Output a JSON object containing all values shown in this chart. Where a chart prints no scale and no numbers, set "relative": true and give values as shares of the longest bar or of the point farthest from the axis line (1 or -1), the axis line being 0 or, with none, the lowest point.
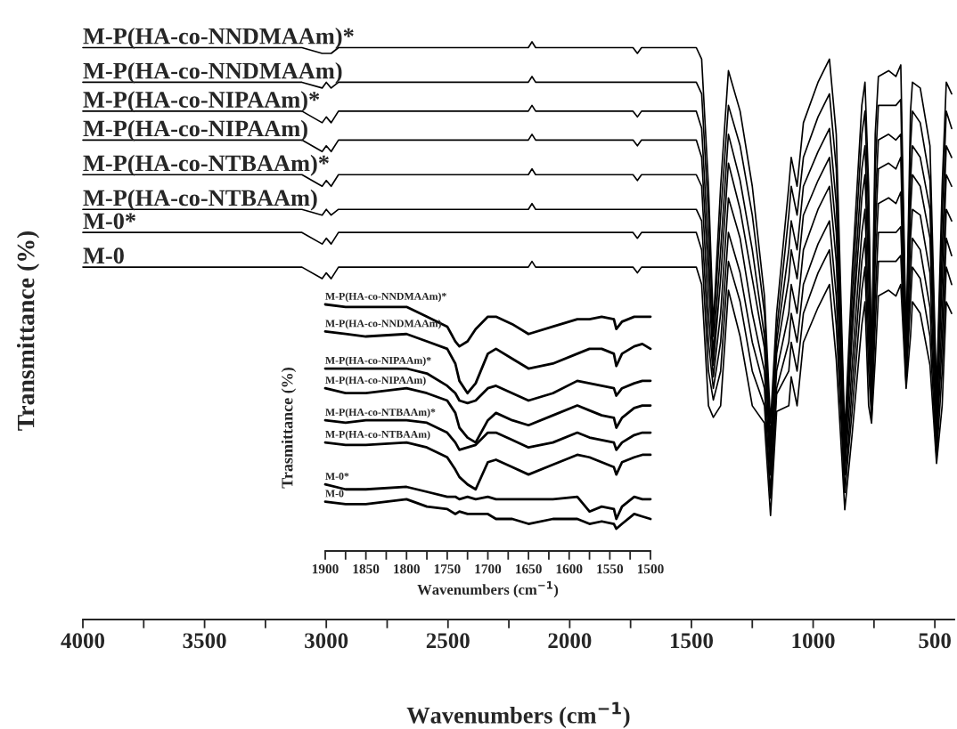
{
  "chart_data": [
    {
      "type": "line",
      "xlabel": "Wavenumbers (cm$^{−1}$)",
      "ylabel": "Transmittance (%)",
      "relative": true,
      "tick_labels": "x",
      "xlim": [
        4000,
        420
      ],
      "xticks": [
        4000,
        {
          "value": 3750,
          "label": null
        },
        3500,
        {
          "value": 3250,
          "label": null
        },
        3000,
        {
          "value": 2750,
          "label": null
        },
        2500,
        {
          "value": 2250,
          "label": null
        },
        2000,
        {
          "value": 1750,
          "label": null
        },
        1500,
        {
          "value": 1250,
          "label": null
        },
        1000,
        {
          "value": 750,
          "label": null
        },
        500
      ],
      "x": [
        4000,
        3100,
        3017,
        3000,
        2980,
        2950,
        2170,
        2155,
        2140,
        1740,
        1722,
        1705,
        1480,
        1458,
        1430,
        1410,
        1380,
        1348,
        1300,
        1250,
        1200,
        1175,
        1150,
        1100,
        1090,
        1066,
        1040,
        980,
        933,
        905,
        870,
        840,
        800,
        787,
        772,
        760,
        745,
        732,
        690,
        660,
        640,
        618,
        600,
        592,
        560,
        520,
        493,
        470,
        453,
        431
      ],
      "series": [
        {
          "name": "M-P(HA-co-NNDMAAm)*",
          "color": "#000000",
          "values": [
            0.99,
            0.99,
            0.98,
            0.98,
            0.98,
            0.99,
            0.99,
            1.0,
            0.99,
            0.99,
            0.98,
            0.99,
            0.99,
            0.97,
            0.75,
            0.51,
            0.75,
            0.95,
            0.88,
            0.75,
            0.56,
            0.34,
            0.53,
            0.75,
            0.8,
            0.75,
            0.86,
            0.93,
            0.97,
            0.84,
            0.32,
            0.6,
            0.89,
            0.93,
            0.75,
            0.44,
            0.84,
            0.94,
            0.95,
            0.94,
            0.96,
            0.48,
            0.88,
            0.93,
            0.92,
            0.82,
            0.39,
            0.75,
            0.93,
            0.91
          ]
        },
        {
          "name": "M-P(HA-co-NNDMAAm)",
          "color": "#000000",
          "values": [
            0.93,
            0.93,
            0.92,
            0.93,
            0.92,
            0.93,
            0.93,
            0.94,
            0.93,
            0.93,
            0.93,
            0.93,
            0.93,
            0.91,
            0.7,
            0.49,
            0.7,
            0.89,
            0.82,
            0.7,
            0.53,
            0.31,
            0.5,
            0.7,
            0.75,
            0.7,
            0.8,
            0.87,
            0.91,
            0.78,
            0.3,
            0.56,
            0.84,
            0.88,
            0.7,
            0.43,
            0.78,
            0.89,
            0.89,
            0.89,
            0.9,
            0.46,
            0.82,
            0.88,
            0.86,
            0.76,
            0.37,
            0.7,
            0.88,
            0.85
          ]
        },
        {
          "name": "M-P(HA-co-NIPAAm)*",
          "color": "#000000",
          "values": [
            0.88,
            0.88,
            0.86,
            0.87,
            0.86,
            0.88,
            0.88,
            0.89,
            0.88,
            0.88,
            0.87,
            0.88,
            0.88,
            0.85,
            0.64,
            0.46,
            0.64,
            0.84,
            0.76,
            0.64,
            0.49,
            0.29,
            0.48,
            0.64,
            0.69,
            0.64,
            0.75,
            0.81,
            0.85,
            0.72,
            0.28,
            0.52,
            0.78,
            0.82,
            0.64,
            0.41,
            0.72,
            0.83,
            0.84,
            0.83,
            0.84,
            0.45,
            0.76,
            0.82,
            0.8,
            0.71,
            0.35,
            0.64,
            0.82,
            0.8
          ]
        },
        {
          "name": "M-P(HA-co-NIPAAm)",
          "color": "#000000",
          "values": [
            0.83,
            0.83,
            0.81,
            0.82,
            0.81,
            0.83,
            0.83,
            0.84,
            0.83,
            0.83,
            0.82,
            0.83,
            0.83,
            0.8,
            0.59,
            0.44,
            0.59,
            0.79,
            0.71,
            0.59,
            0.47,
            0.27,
            0.46,
            0.59,
            0.64,
            0.59,
            0.7,
            0.76,
            0.8,
            0.67,
            0.27,
            0.49,
            0.73,
            0.77,
            0.59,
            0.4,
            0.67,
            0.78,
            0.79,
            0.78,
            0.8,
            0.44,
            0.71,
            0.77,
            0.75,
            0.66,
            0.34,
            0.59,
            0.77,
            0.75
          ]
        },
        {
          "name": "M-P(HA-co-NTBAAm)*",
          "color": "#000000",
          "values": [
            0.77,
            0.77,
            0.75,
            0.76,
            0.75,
            0.77,
            0.77,
            0.78,
            0.77,
            0.77,
            0.76,
            0.77,
            0.77,
            0.75,
            0.53,
            0.42,
            0.53,
            0.73,
            0.66,
            0.53,
            0.43,
            0.25,
            0.43,
            0.53,
            0.58,
            0.53,
            0.64,
            0.71,
            0.75,
            0.62,
            0.25,
            0.44,
            0.67,
            0.71,
            0.53,
            0.38,
            0.62,
            0.72,
            0.73,
            0.72,
            0.74,
            0.43,
            0.66,
            0.71,
            0.7,
            0.6,
            0.31,
            0.53,
            0.71,
            0.69
          ]
        },
        {
          "name": "M-P(HA-co-NTBAAm)",
          "color": "#000000",
          "values": [
            0.71,
            0.71,
            0.7,
            0.71,
            0.7,
            0.71,
            0.71,
            0.72,
            0.71,
            0.71,
            0.71,
            0.71,
            0.71,
            0.69,
            0.48,
            0.4,
            0.48,
            0.67,
            0.6,
            0.48,
            0.4,
            0.22,
            0.4,
            0.48,
            0.53,
            0.48,
            0.58,
            0.65,
            0.69,
            0.56,
            0.22,
            0.4,
            0.62,
            0.66,
            0.48,
            0.36,
            0.56,
            0.67,
            0.67,
            0.67,
            0.68,
            0.41,
            0.6,
            0.66,
            0.64,
            0.54,
            0.3,
            0.48,
            0.66,
            0.63
          ]
        },
        {
          "name": "M-0*",
          "color": "#000000",
          "values": [
            0.67,
            0.67,
            0.65,
            0.66,
            0.65,
            0.67,
            0.67,
            0.67,
            0.67,
            0.67,
            0.66,
            0.67,
            0.67,
            0.64,
            0.43,
            0.38,
            0.43,
            0.62,
            0.55,
            0.43,
            0.37,
            0.21,
            0.39,
            0.43,
            0.48,
            0.43,
            0.53,
            0.6,
            0.64,
            0.51,
            0.22,
            0.36,
            0.57,
            0.61,
            0.43,
            0.35,
            0.51,
            0.62,
            0.62,
            0.62,
            0.63,
            0.41,
            0.55,
            0.61,
            0.59,
            0.49,
            0.28,
            0.43,
            0.61,
            0.58
          ]
        },
        {
          "name": "M-0",
          "color": "#000000",
          "values": [
            0.61,
            0.61,
            0.59,
            0.6,
            0.59,
            0.61,
            0.61,
            0.62,
            0.61,
            0.61,
            0.6,
            0.61,
            0.61,
            0.58,
            0.37,
            0.35,
            0.37,
            0.57,
            0.49,
            0.37,
            0.34,
            0.18,
            0.36,
            0.37,
            0.42,
            0.37,
            0.48,
            0.54,
            0.58,
            0.45,
            0.19,
            0.32,
            0.51,
            0.55,
            0.37,
            0.34,
            0.45,
            0.56,
            0.57,
            0.56,
            0.58,
            0.4,
            0.49,
            0.55,
            0.53,
            0.44,
            0.27,
            0.37,
            0.55,
            0.53
          ]
        }
      ]
    },
    {
      "type": "line",
      "xlabel": "Wavenumbers (cm$^{−1}$)",
      "ylabel": "Trasmittance (%)",
      "relative": true,
      "tick_labels": "x",
      "xlim": [
        1900,
        1500
      ],
      "xticks": [
        1900,
        {
          "value": 1875,
          "label": null
        },
        1850,
        {
          "value": 1825,
          "label": null
        },
        1800,
        {
          "value": 1775,
          "label": null
        },
        1750,
        {
          "value": 1725,
          "label": null
        },
        1700,
        {
          "value": 1675,
          "label": null
        },
        1650,
        {
          "value": 1625,
          "label": null
        },
        1600,
        {
          "value": 1575,
          "label": null
        },
        1550,
        {
          "value": 1525,
          "label": null
        },
        1500
      ],
      "x": [
        1900,
        1875,
        1850,
        1800,
        1775,
        1750,
        1740,
        1735,
        1725,
        1715,
        1700,
        1690,
        1670,
        1650,
        1620,
        1590,
        1575,
        1560,
        1545,
        1542,
        1535,
        1520,
        1510,
        1500
      ],
      "series": [
        {
          "name": "M-P(HA-co-NNDMAAm)*",
          "color": "#000000",
          "values": [
            1.0,
            0.99,
            0.99,
            0.99,
            0.95,
            0.91,
            0.85,
            0.83,
            0.85,
            0.9,
            0.95,
            0.95,
            0.92,
            0.88,
            0.91,
            0.94,
            0.94,
            0.95,
            0.94,
            0.9,
            0.93,
            0.95,
            0.95,
            0.95
          ]
        },
        {
          "name": "M-P(HA-co-NNDMAAm)",
          "color": "#000000",
          "values": [
            0.89,
            0.88,
            0.87,
            0.88,
            0.85,
            0.82,
            0.76,
            0.69,
            0.64,
            0.68,
            0.8,
            0.82,
            0.78,
            0.74,
            0.76,
            0.8,
            0.82,
            0.82,
            0.8,
            0.75,
            0.8,
            0.83,
            0.84,
            0.82
          ]
        },
        {
          "name": "M-P(HA-co-NIPAAm)*",
          "color": "#000000",
          "values": [
            0.74,
            0.74,
            0.74,
            0.74,
            0.72,
            0.67,
            0.64,
            0.61,
            0.6,
            0.61,
            0.66,
            0.67,
            0.64,
            0.61,
            0.64,
            0.69,
            0.68,
            0.67,
            0.66,
            0.63,
            0.66,
            0.68,
            0.69,
            0.69
          ]
        },
        {
          "name": "M-P(HA-co-NIPAAm)",
          "color": "#000000",
          "values": [
            0.66,
            0.64,
            0.64,
            0.66,
            0.64,
            0.61,
            0.56,
            0.5,
            0.46,
            0.44,
            0.53,
            0.56,
            0.53,
            0.51,
            0.55,
            0.59,
            0.57,
            0.55,
            0.54,
            0.5,
            0.54,
            0.58,
            0.59,
            0.59
          ]
        },
        {
          "name": "M-P(HA-co-NTBAAm)*",
          "color": "#000000",
          "values": [
            0.53,
            0.52,
            0.53,
            0.53,
            0.52,
            0.48,
            0.44,
            0.41,
            0.42,
            0.43,
            0.48,
            0.48,
            0.45,
            0.42,
            0.44,
            0.48,
            0.46,
            0.45,
            0.44,
            0.41,
            0.44,
            0.47,
            0.48,
            0.48
          ]
        },
        {
          "name": "M-P(HA-co-NTBAAm)",
          "color": "#000000",
          "values": [
            0.44,
            0.43,
            0.43,
            0.44,
            0.42,
            0.38,
            0.33,
            0.3,
            0.27,
            0.25,
            0.36,
            0.37,
            0.34,
            0.31,
            0.35,
            0.39,
            0.38,
            0.36,
            0.34,
            0.31,
            0.36,
            0.38,
            0.39,
            0.39
          ]
        },
        {
          "name": "M-0*",
          "color": "#000000",
          "values": [
            0.27,
            0.25,
            0.25,
            0.26,
            0.24,
            0.22,
            0.22,
            0.21,
            0.22,
            0.21,
            0.22,
            0.21,
            0.21,
            0.21,
            0.21,
            0.22,
            0.16,
            0.18,
            0.17,
            0.13,
            0.18,
            0.22,
            0.21,
            0.21
          ]
        },
        {
          "name": "M-0",
          "color": "#000000",
          "values": [
            0.2,
            0.19,
            0.19,
            0.21,
            0.18,
            0.17,
            0.15,
            0.16,
            0.15,
            0.15,
            0.15,
            0.13,
            0.13,
            0.11,
            0.13,
            0.13,
            0.11,
            0.12,
            0.11,
            0.09,
            0.11,
            0.15,
            0.14,
            0.13
          ]
        }
      ]
    }
  ]
}
